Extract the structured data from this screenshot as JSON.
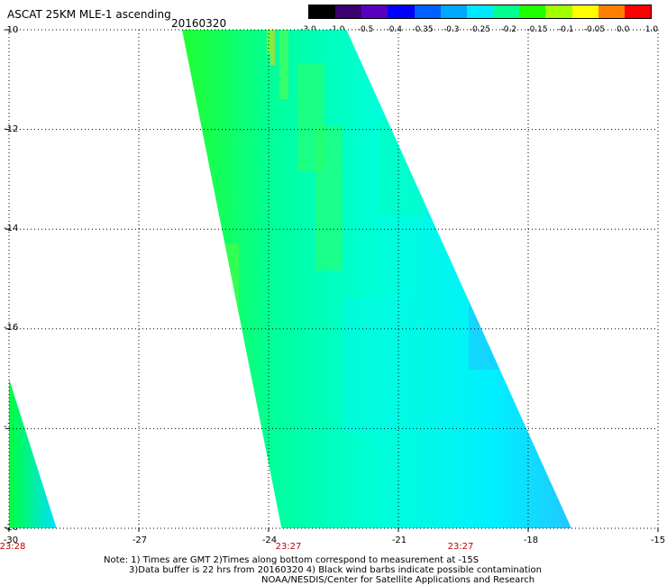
{
  "header": {
    "title": "ASCAT 25KM MLE-1 ascending",
    "date": "20160320"
  },
  "colorbar": {
    "ticks": [
      "-3.0",
      "-1.0",
      "-0.5",
      "-0.4",
      "-0.35",
      "-0.3",
      "-0.25",
      "-0.2",
      "-0.15",
      "-0.1",
      "-0.05",
      "0.0",
      "1.0"
    ],
    "colors": [
      "#000000",
      "#3a0070",
      "#5a00c0",
      "#0000ff",
      "#0060ff",
      "#00a8ff",
      "#00e8ff",
      "#00ff90",
      "#20ff00",
      "#a0ff00",
      "#ffff00",
      "#ff8000",
      "#ff0000"
    ]
  },
  "chart_data": {
    "type": "heatmap",
    "xlim": [
      -30,
      -15
    ],
    "ylim": [
      -20,
      -10
    ],
    "x_ticks": [
      "-30",
      "-27",
      "-24",
      "-21",
      "-18",
      "-15"
    ],
    "y_ticks": [
      "-10",
      "-12",
      "-14",
      "-16",
      "-18",
      "-20"
    ],
    "grid": true,
    "swaths": [
      {
        "name": "main",
        "top_left": [
          -26.0,
          -10.0
        ],
        "top_right": [
          -22.2,
          -10.0
        ],
        "bottom_left": [
          -23.7,
          -20.0
        ],
        "bottom_right": [
          -17.0,
          -20.0
        ]
      },
      {
        "name": "edge",
        "top_left": [
          -30.0,
          -17.0
        ],
        "top_right": [
          -30.0,
          -17.0
        ],
        "bottom_left": [
          -30.0,
          -20.0
        ],
        "bottom_right": [
          -28.9,
          -20.0
        ]
      }
    ]
  },
  "time_labels": [
    {
      "text": "23:28",
      "lon": -30
    },
    {
      "text": "23:27",
      "lon": -24
    },
    {
      "text": "23:27",
      "lon": -20
    }
  ],
  "notes": {
    "line1": "Note: 1) Times are GMT 2)Times along bottom correspond to measurement at -15S",
    "line2": "3)Data buffer is 22 hrs from 20160320 4) Black wind barbs indicate possible contamination",
    "line3": "NOAA/NESDIS/Center for Satellite Applications and Research"
  }
}
